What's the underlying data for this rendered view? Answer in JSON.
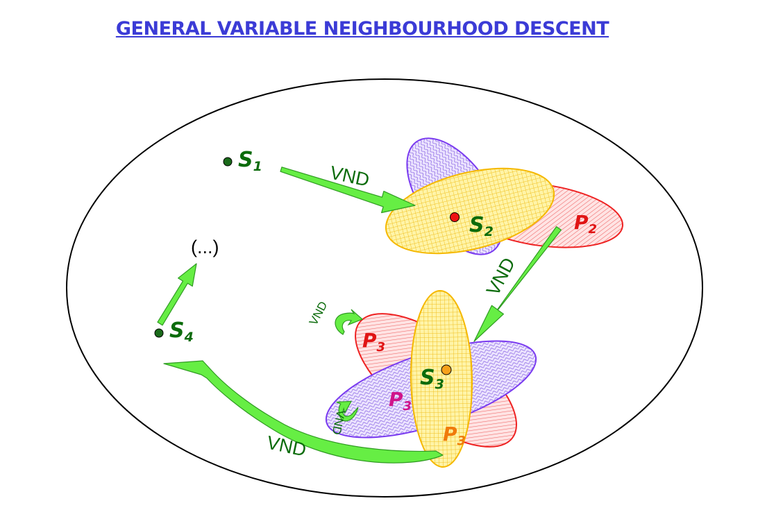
{
  "title": "GENERAL VARIABLE NEIGHBOURHOOD DESCENT",
  "points": {
    "s1": {
      "letter": "S",
      "sub": "1"
    },
    "s2": {
      "letter": "S",
      "sub": "2"
    },
    "s3": {
      "letter": "S",
      "sub": "3"
    },
    "s4": {
      "letter": "S",
      "sub": "4"
    }
  },
  "neighbourhoods": {
    "p2": {
      "letter": "P",
      "sub": "2"
    },
    "p3_red": {
      "letter": "P",
      "sub": "3"
    },
    "p3_purple": {
      "letter": "P",
      "sub": "3"
    },
    "p3_yellow": {
      "letter": "P",
      "sub": "3"
    }
  },
  "arrows": {
    "vnd_s1_s2": "VND",
    "vnd_s2_s3": "VND",
    "vnd_loop_top": "VND",
    "vnd_loop_left": "VND",
    "vnd_s3_s4": "VND"
  },
  "ellipsis": "(...)",
  "colors": {
    "title": "#3b3bd6",
    "arrow": "#66ee44",
    "point_green": "#0b6b0b",
    "point_red": "#e01414",
    "point_orange": "#f59a1a",
    "ellipse_yellow": "#fff2a0",
    "ellipse_red": "#ffd2d2",
    "ellipse_purple": "#ddd0ff"
  }
}
